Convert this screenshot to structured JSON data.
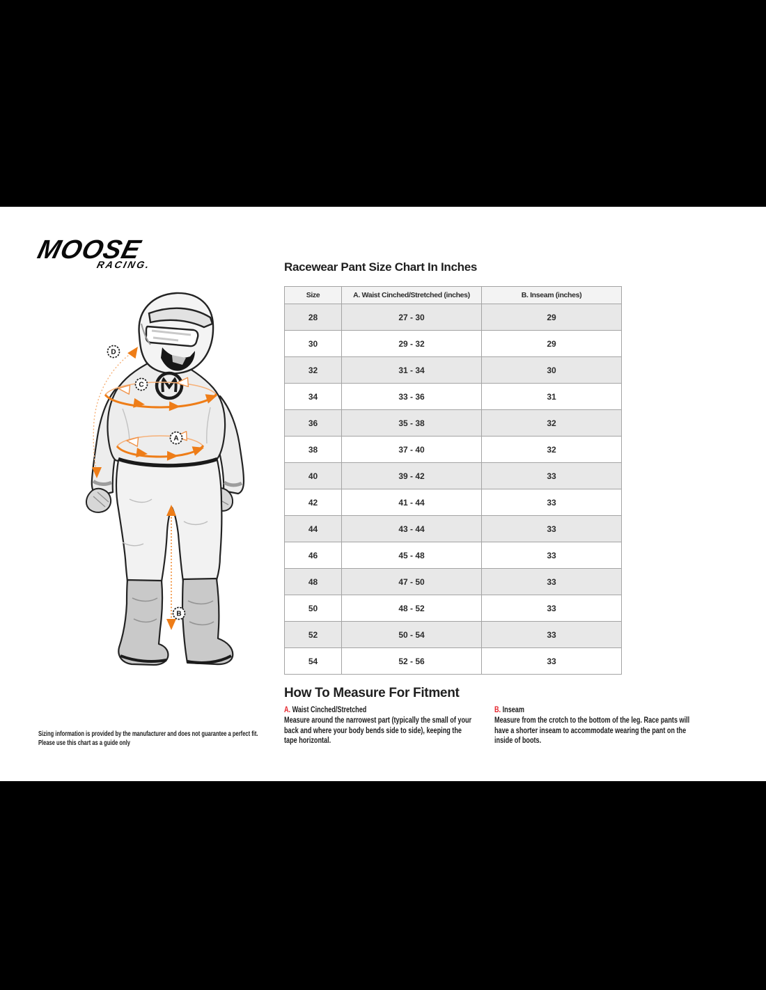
{
  "brand": {
    "name": "MOOSE",
    "sub": "RACING."
  },
  "size_chart": {
    "title": "Racewear Pant Size Chart In Inches",
    "columns": [
      "Size",
      "A. Waist Cinched/Stretched (inches)",
      "B. Inseam (inches)"
    ],
    "rows": [
      [
        "28",
        "27 - 30",
        "29"
      ],
      [
        "30",
        "29 - 32",
        "29"
      ],
      [
        "32",
        "31 - 34",
        "30"
      ],
      [
        "34",
        "33 - 36",
        "31"
      ],
      [
        "36",
        "35 - 38",
        "32"
      ],
      [
        "38",
        "37 - 40",
        "32"
      ],
      [
        "40",
        "39 - 42",
        "33"
      ],
      [
        "42",
        "41 - 44",
        "33"
      ],
      [
        "44",
        "43 - 44",
        "33"
      ],
      [
        "46",
        "45 - 48",
        "33"
      ],
      [
        "48",
        "47 - 50",
        "33"
      ],
      [
        "50",
        "48 - 52",
        "33"
      ],
      [
        "52",
        "50 - 54",
        "33"
      ],
      [
        "54",
        "52 - 56",
        "33"
      ]
    ]
  },
  "chart_data": {
    "type": "table",
    "title": "Racewear Pant Size Chart In Inches",
    "columns": [
      "Size",
      "A. Waist Cinched/Stretched (inches)",
      "B. Inseam (inches)"
    ],
    "rows": [
      [
        "28",
        "27 - 30",
        "29"
      ],
      [
        "30",
        "29 - 32",
        "29"
      ],
      [
        "32",
        "31 - 34",
        "30"
      ],
      [
        "34",
        "33 - 36",
        "31"
      ],
      [
        "36",
        "35 - 38",
        "32"
      ],
      [
        "38",
        "37 - 40",
        "32"
      ],
      [
        "40",
        "39 - 42",
        "33"
      ],
      [
        "42",
        "41 - 44",
        "33"
      ],
      [
        "44",
        "43 - 44",
        "33"
      ],
      [
        "46",
        "45 - 48",
        "33"
      ],
      [
        "48",
        "47 - 50",
        "33"
      ],
      [
        "50",
        "48 - 52",
        "33"
      ],
      [
        "52",
        "50 - 54",
        "33"
      ],
      [
        "54",
        "52 - 56",
        "33"
      ]
    ]
  },
  "how_to": {
    "title": "How To Measure For Fitment",
    "sections": [
      {
        "letter": "A.",
        "name": "Waist Cinched/Stretched",
        "text": "Measure around the narrowest part (typically the small of your back and where your body bends side to side), keeping the tape horizontal."
      },
      {
        "letter": "B.",
        "name": "Inseam",
        "text": "Measure from the crotch to the bottom of the leg. Race pants will have a shorter inseam to accommodate wearing the pant on the inside of boots."
      }
    ]
  },
  "disclaimer": {
    "line1": "Sizing information is provided by the manufacturer and does not guarantee a perfect fit.",
    "line2": "Please use this chart as a guide only"
  },
  "diagram": {
    "labels": {
      "waist": "A",
      "inseam": "B",
      "chest": "C",
      "height": "D"
    },
    "accent_color": "#EE7D18",
    "accent_red": "#E5232B"
  }
}
